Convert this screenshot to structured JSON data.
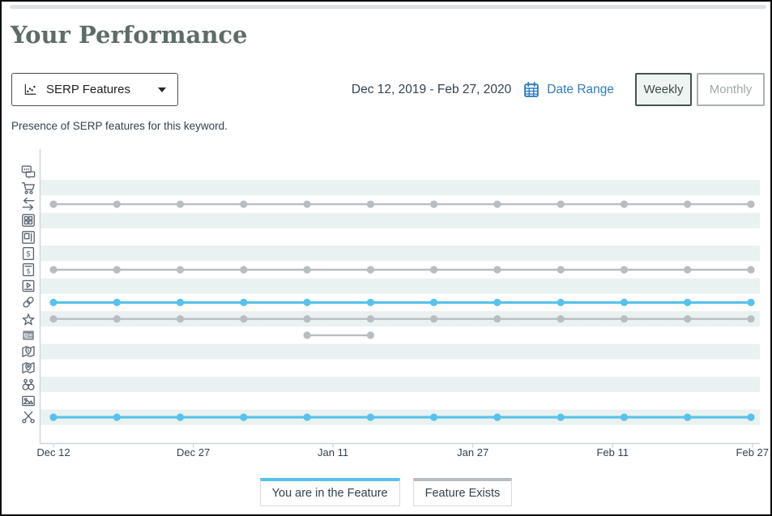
{
  "page": {
    "title": "Your Performance",
    "subtitle": "Presence of SERP features for this keyword."
  },
  "controls": {
    "metric_dropdown": {
      "label": "SERP Features",
      "icon": "scatter-chart-icon"
    },
    "date_range": {
      "value": "Dec 12, 2019 - Feb 27, 2020",
      "icon": "calendar-icon",
      "link_label": "Date Range"
    },
    "granularity": {
      "options": [
        {
          "label": "Weekly",
          "selected": true
        },
        {
          "label": "Monthly",
          "selected": false
        }
      ]
    }
  },
  "chart_data": {
    "type": "line",
    "x_tick_labels": [
      "Dec 12",
      "Dec 27",
      "Jan 11",
      "Jan 27",
      "Feb 11",
      "Feb 27"
    ],
    "x_points": [
      "Dec 12",
      "Dec 19",
      "Dec 26",
      "Jan 2",
      "Jan 9",
      "Jan 16",
      "Jan 23",
      "Jan 30",
      "Feb 6",
      "Feb 13",
      "Feb 20",
      "Feb 27"
    ],
    "point_count": 12,
    "rows": [
      {
        "icon": "chat-bubbles",
        "presence": null
      },
      {
        "icon": "shopping-cart",
        "presence": null
      },
      {
        "icon": "double-arrows",
        "presence": {
          "status": "feature_exists",
          "from": 0,
          "to": 11
        }
      },
      {
        "icon": "grid",
        "presence": null
      },
      {
        "icon": "panel-layout",
        "presence": null
      },
      {
        "icon": "dollar-box",
        "presence": null
      },
      {
        "icon": "dollar-box-line",
        "presence": {
          "status": "feature_exists",
          "from": 0,
          "to": 11
        }
      },
      {
        "icon": "video",
        "presence": null
      },
      {
        "icon": "link",
        "presence": {
          "status": "you_in_feature",
          "from": 0,
          "to": 11
        }
      },
      {
        "icon": "star",
        "presence": {
          "status": "feature_exists",
          "from": 0,
          "to": 11
        }
      },
      {
        "icon": "news",
        "presence": {
          "status": "feature_exists",
          "from": 4,
          "to": 5
        }
      },
      {
        "icon": "map-dollar-pin",
        "presence": null
      },
      {
        "icon": "map-pin",
        "presence": null
      },
      {
        "icon": "binoculars",
        "presence": null
      },
      {
        "icon": "image",
        "presence": null
      },
      {
        "icon": "scissors",
        "presence": {
          "status": "you_in_feature",
          "from": 0,
          "to": 11
        }
      }
    ],
    "legend": [
      {
        "label": "You are in the Feature",
        "status": "you_in_feature",
        "color": "#58c2ea"
      },
      {
        "label": "Feature Exists",
        "status": "feature_exists",
        "color": "#b8bdc1"
      }
    ],
    "grid": "striped-rows",
    "legend_position": "bottom"
  },
  "colors": {
    "accent_blue": "#58c2ea",
    "neutral_gray": "#b8bdc1",
    "stripe": "#e9f2f1",
    "axis": "#cdd4d7",
    "link_blue": "#2d7cc1",
    "title_gray": "#5d6c68",
    "text_dark": "#33424d",
    "icon_gray": "#5a6670",
    "selected_bg": "#edf4f1",
    "selected_border": "#44524e"
  }
}
